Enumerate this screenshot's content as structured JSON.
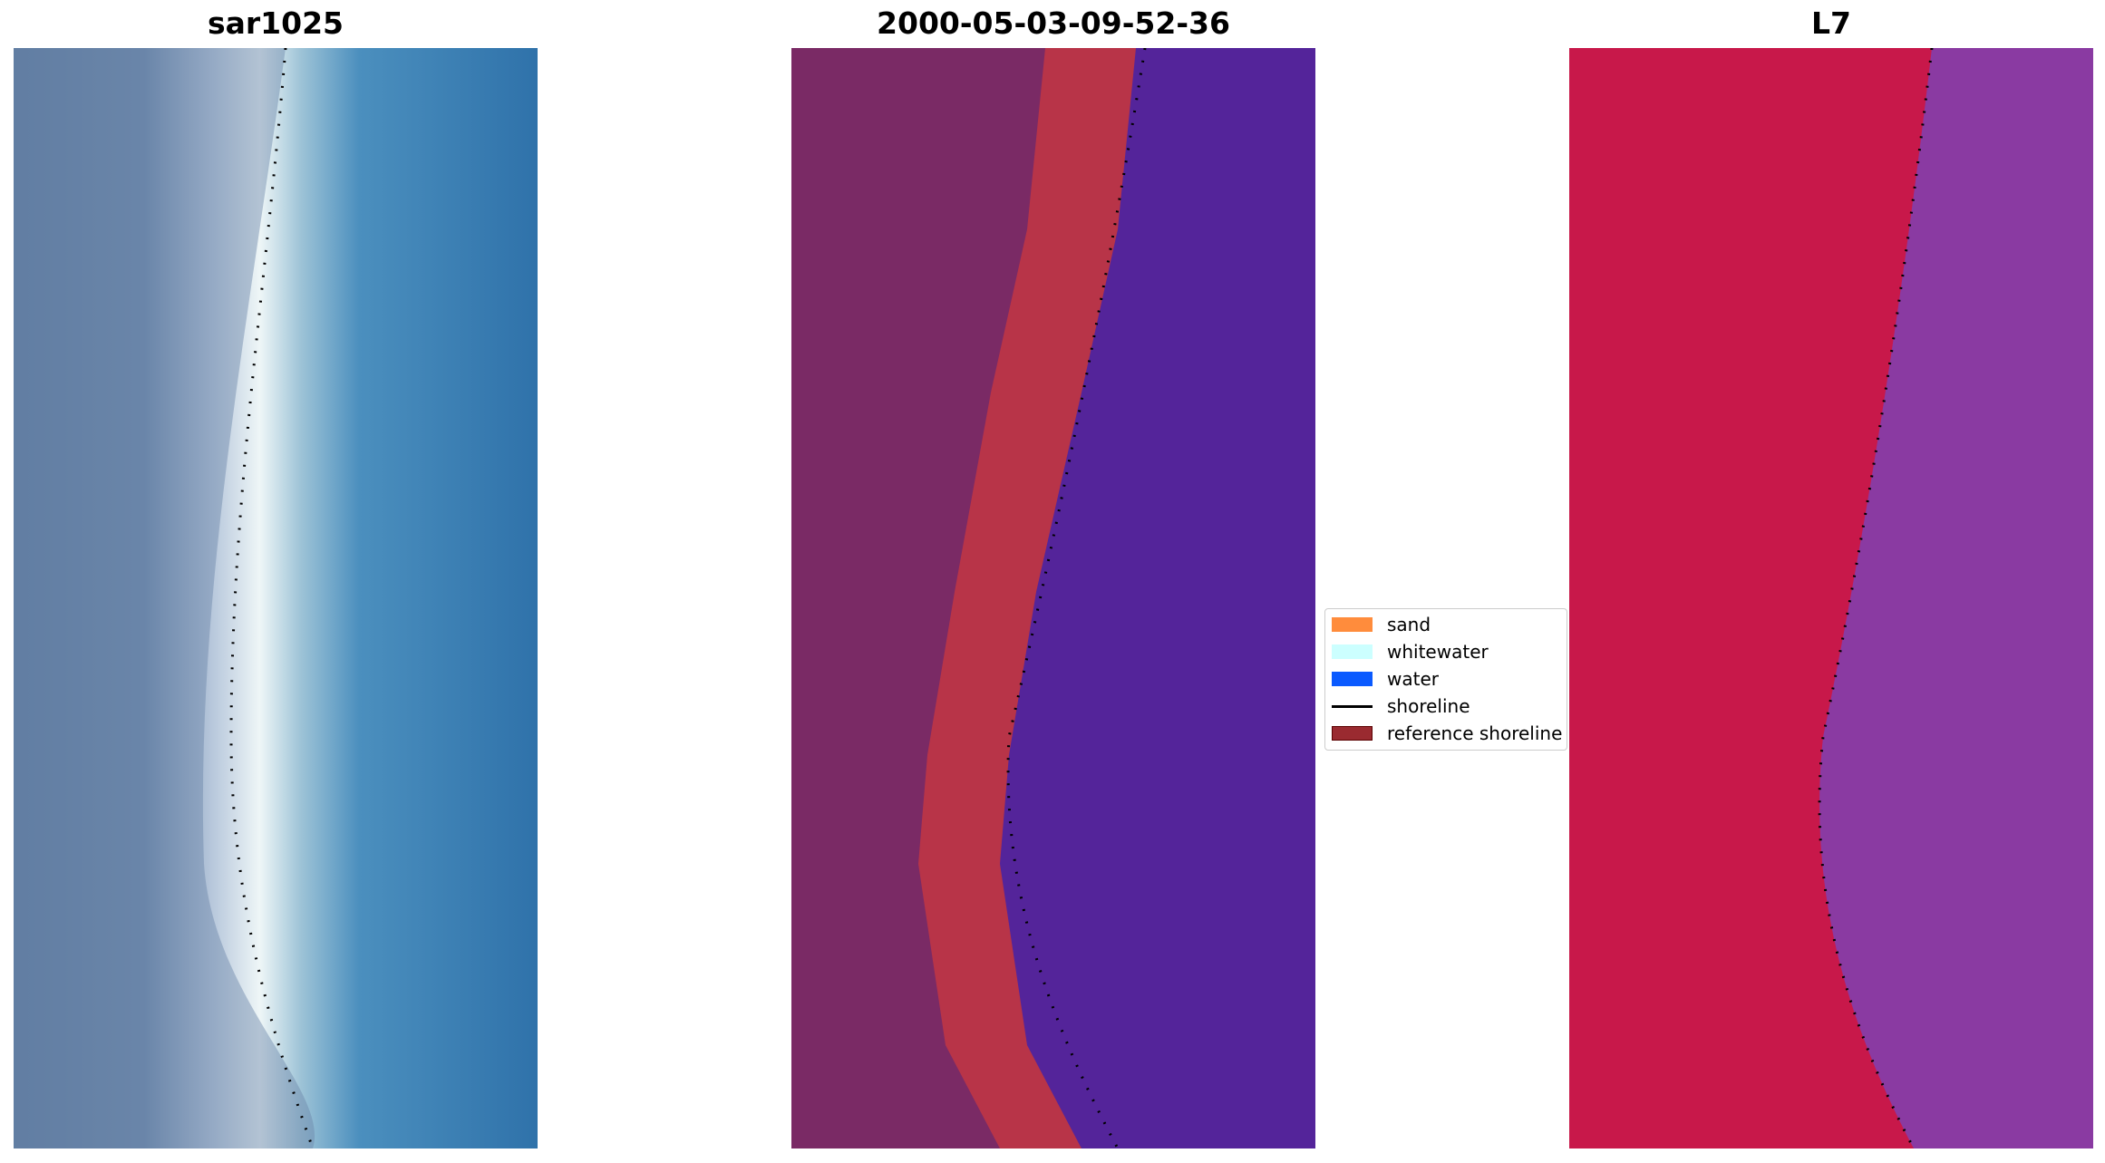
{
  "panels": [
    {
      "title": "sar1025"
    },
    {
      "title": "2000-05-03-09-52-36"
    },
    {
      "title": "L7"
    }
  ],
  "legend": {
    "items": [
      {
        "label": "sand",
        "color": "#ff8c3c",
        "kind": "patch"
      },
      {
        "label": "whitewater",
        "color": "#ccffff",
        "kind": "patch"
      },
      {
        "label": "water",
        "color": "#0a5aff",
        "kind": "patch"
      },
      {
        "label": "shoreline",
        "color": "#000000",
        "kind": "line"
      },
      {
        "label": "reference shoreline",
        "color": "#9a2a30",
        "kind": "patch"
      }
    ]
  },
  "colors": {
    "rgb_land": "#5d7aa0",
    "rgb_whitewater": "#e8f4f5",
    "rgb_water": "#3480b8",
    "class_land": "#7a2a65",
    "class_sand": "#b83448",
    "class_water": "#54249a",
    "mndwi_land": "#c8184a",
    "mndwi_water": "#8a3aa2"
  }
}
